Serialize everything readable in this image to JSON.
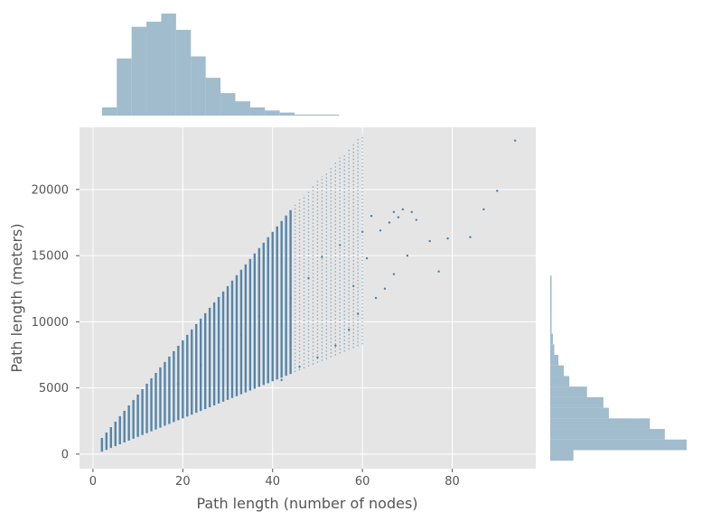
{
  "chart_data": {
    "type": "scatter",
    "title": "",
    "xlabel": "Path length (number of nodes)",
    "ylabel": "Path length (meters)",
    "xlim": [
      -3,
      98.6
    ],
    "ylim": [
      -1100,
      24700
    ],
    "xticks": [
      0,
      20,
      40,
      60,
      80
    ],
    "yticks": [
      0,
      5000,
      10000,
      15000,
      20000
    ],
    "grid": true,
    "point_color": "#4c7fa6",
    "hist_color": "#a0bccd",
    "background_color": "#e5e5e5",
    "band": {
      "description": "dense column of points per integer node count",
      "x_min": 2,
      "x_max": 60,
      "lower_m_per_node": 140,
      "upper_m_per_node": 410,
      "lower_intercept": -100,
      "upper_intercept": 400
    },
    "outliers": [
      {
        "x": 94,
        "y": 23700
      },
      {
        "x": 90,
        "y": 19900
      },
      {
        "x": 87,
        "y": 18500
      },
      {
        "x": 84,
        "y": 16400
      },
      {
        "x": 79,
        "y": 16300
      },
      {
        "x": 77,
        "y": 13800
      },
      {
        "x": 75,
        "y": 16100
      },
      {
        "x": 72,
        "y": 17700
      },
      {
        "x": 71,
        "y": 18300
      },
      {
        "x": 70,
        "y": 15000
      },
      {
        "x": 69,
        "y": 18500
      },
      {
        "x": 68,
        "y": 17900
      },
      {
        "x": 67,
        "y": 18300
      },
      {
        "x": 67,
        "y": 13600
      },
      {
        "x": 66,
        "y": 17500
      },
      {
        "x": 65,
        "y": 12500
      },
      {
        "x": 64,
        "y": 16900
      },
      {
        "x": 63,
        "y": 11800
      },
      {
        "x": 62,
        "y": 18000
      },
      {
        "x": 61,
        "y": 14800
      },
      {
        "x": 60,
        "y": 16800
      },
      {
        "x": 59,
        "y": 10600
      },
      {
        "x": 58,
        "y": 12700
      },
      {
        "x": 57,
        "y": 9400
      },
      {
        "x": 55,
        "y": 15800
      },
      {
        "x": 54,
        "y": 8200
      },
      {
        "x": 51,
        "y": 14900
      },
      {
        "x": 50,
        "y": 7300
      },
      {
        "x": 48,
        "y": 13300
      },
      {
        "x": 46,
        "y": 6600
      },
      {
        "x": 44,
        "y": 11800
      },
      {
        "x": 42,
        "y": 5600
      },
      {
        "x": 37,
        "y": 10400
      },
      {
        "x": 33,
        "y": 9000
      },
      {
        "x": 29,
        "y": 7900
      },
      {
        "x": 24,
        "y": 6700
      },
      {
        "x": 19,
        "y": 5300
      }
    ],
    "top_histogram": {
      "bins": [
        2,
        5.3,
        8.6,
        11.9,
        15.2,
        18.5,
        21.8,
        25.1,
        28.4,
        31.7,
        35.0,
        38.3,
        41.6,
        44.9,
        48.2,
        51.5,
        54.8
      ],
      "counts": [
        8,
        56,
        87,
        92,
        100,
        84,
        58,
        37,
        22,
        14,
        8,
        5,
        3,
        1,
        1,
        1
      ]
    },
    "right_histogram": {
      "bins": [
        -500,
        300,
        1100,
        1900,
        2700,
        3500,
        4300,
        5100,
        5900,
        6700,
        7500,
        8300,
        9100,
        9900,
        10700,
        11700,
        13500
      ],
      "counts": [
        17,
        100,
        84,
        73,
        43,
        39,
        27,
        14,
        10,
        6,
        3,
        2,
        1,
        1,
        1,
        1
      ]
    }
  }
}
